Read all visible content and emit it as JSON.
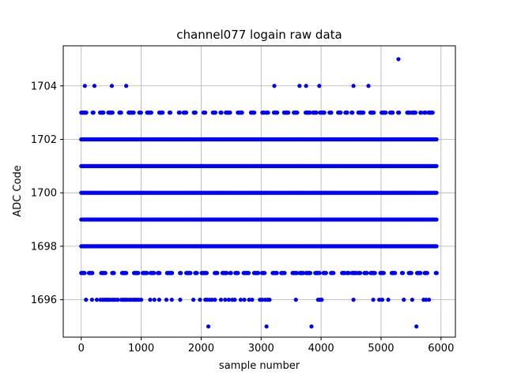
{
  "chart_data": {
    "type": "scatter",
    "title": "channel077 logain raw data",
    "xlabel": "sample number",
    "ylabel": "ADC Code",
    "xlim": [
      -300,
      6240
    ],
    "ylim": [
      1694.6,
      1705.5
    ],
    "x_ticks": [
      0,
      1000,
      2000,
      3000,
      4000,
      5000,
      6000
    ],
    "y_ticks": [
      1696,
      1698,
      1700,
      1702,
      1704
    ],
    "grid": true,
    "marker_color": "#0000ff",
    "x_range": [
      0,
      5930
    ],
    "levels": [
      {
        "y": 1695,
        "density": "sparse",
        "x": [
          2120,
          3090,
          3840,
          5590
        ]
      },
      {
        "y": 1696,
        "density": "sparse",
        "x": [
          80,
          180,
          260,
          320,
          360,
          390,
          420,
          440,
          470,
          510,
          540,
          570,
          610,
          670,
          700,
          730,
          760,
          800,
          830,
          870,
          900,
          930,
          960,
          1000,
          1150,
          1220,
          1300,
          1420,
          1510,
          1650,
          1870,
          1980,
          2070,
          2100,
          2140,
          2180,
          2230,
          2330,
          2400,
          2460,
          2520,
          2560,
          2660,
          2720,
          2800,
          2850,
          2980,
          3020,
          3070,
          3110,
          3140,
          3580,
          3950,
          3980,
          4010,
          4540,
          4870,
          4970,
          5020,
          5120,
          5380,
          5520,
          5710,
          5750,
          5800
        ]
      },
      {
        "y": 1697,
        "density": "medium",
        "x_from": 0,
        "x_to": 5930
      },
      {
        "y": 1698,
        "density": "dense",
        "x_from": 0,
        "x_to": 5930
      },
      {
        "y": 1699,
        "density": "dense",
        "x_from": 0,
        "x_to": 5930
      },
      {
        "y": 1700,
        "density": "dense",
        "x_from": 0,
        "x_to": 5930
      },
      {
        "y": 1701,
        "density": "dense",
        "x_from": 0,
        "x_to": 5930
      },
      {
        "y": 1702,
        "density": "dense",
        "x_from": 0,
        "x_to": 5930
      },
      {
        "y": 1703,
        "density": "medium",
        "x_from": 0,
        "x_to": 5930
      },
      {
        "y": 1704,
        "density": "sparse",
        "x": [
          60,
          220,
          510,
          750,
          3220,
          3640,
          3750,
          3970,
          4540,
          4790
        ]
      },
      {
        "y": 1705,
        "density": "sparse",
        "x": [
          5290
        ]
      }
    ]
  }
}
